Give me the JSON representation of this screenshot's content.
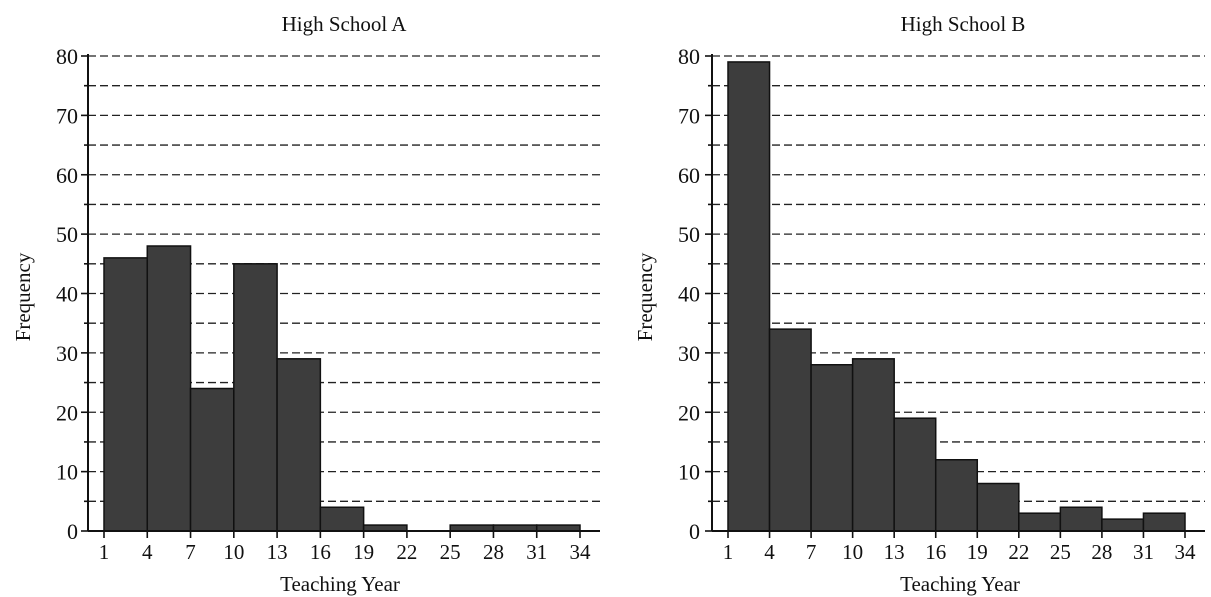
{
  "chart_data": [
    {
      "type": "bar",
      "title": "High School A",
      "xlabel": "Teaching Year",
      "ylabel": "Frequency",
      "ylim": [
        0,
        80
      ],
      "yticks": [
        "0",
        "10",
        "20",
        "30",
        "40",
        "50",
        "60",
        "70",
        "80"
      ],
      "xticks": [
        "1",
        "4",
        "7",
        "10",
        "13",
        "16",
        "19",
        "22",
        "25",
        "28",
        "31",
        "34"
      ],
      "xlim": [
        1,
        34
      ],
      "bin_width": 3,
      "bins": [
        {
          "start": 1,
          "end": 4,
          "value": 46
        },
        {
          "start": 4,
          "end": 7,
          "value": 48
        },
        {
          "start": 7,
          "end": 10,
          "value": 24
        },
        {
          "start": 10,
          "end": 13,
          "value": 45
        },
        {
          "start": 13,
          "end": 16,
          "value": 29
        },
        {
          "start": 16,
          "end": 19,
          "value": 4
        },
        {
          "start": 19,
          "end": 22,
          "value": 1
        },
        {
          "start": 22,
          "end": 25,
          "value": 0
        },
        {
          "start": 25,
          "end": 28,
          "value": 1
        },
        {
          "start": 28,
          "end": 31,
          "value": 1
        },
        {
          "start": 31,
          "end": 34,
          "value": 1
        }
      ],
      "grid": true
    },
    {
      "type": "bar",
      "title": "High School B",
      "xlabel": "Teaching Year",
      "ylabel": "Frequency",
      "ylim": [
        0,
        80
      ],
      "yticks": [
        "0",
        "10",
        "20",
        "30",
        "40",
        "50",
        "60",
        "70",
        "80"
      ],
      "xticks": [
        "1",
        "4",
        "7",
        "10",
        "13",
        "16",
        "19",
        "22",
        "25",
        "28",
        "31",
        "34"
      ],
      "xlim": [
        1,
        34
      ],
      "bin_width": 3,
      "bins": [
        {
          "start": 1,
          "end": 4,
          "value": 79
        },
        {
          "start": 4,
          "end": 7,
          "value": 34
        },
        {
          "start": 7,
          "end": 10,
          "value": 28
        },
        {
          "start": 10,
          "end": 13,
          "value": 29
        },
        {
          "start": 13,
          "end": 16,
          "value": 19
        },
        {
          "start": 16,
          "end": 19,
          "value": 12
        },
        {
          "start": 19,
          "end": 22,
          "value": 8
        },
        {
          "start": 22,
          "end": 25,
          "value": 3
        },
        {
          "start": 25,
          "end": 28,
          "value": 4
        },
        {
          "start": 28,
          "end": 31,
          "value": 2
        },
        {
          "start": 31,
          "end": 34,
          "value": 3
        }
      ],
      "grid": true
    }
  ],
  "colors": {
    "bar_fill": "#3d3d3d",
    "bar_stroke": "#111111",
    "grid": "#222222"
  }
}
